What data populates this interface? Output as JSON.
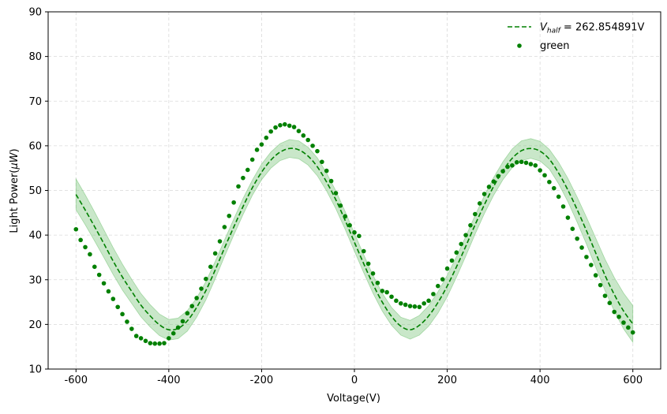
{
  "chart_data": {
    "type": "line",
    "xlabel": "Voltage(V)",
    "ylabel_main": "Light Power(",
    "ylabel_unit": "μW",
    "ylabel_close": ")",
    "xlim": [
      -660,
      660
    ],
    "ylim": [
      10,
      90
    ],
    "xticks": [
      -600,
      -400,
      -200,
      0,
      200,
      400,
      600
    ],
    "yticks": [
      10,
      20,
      30,
      40,
      50,
      60,
      70,
      80,
      90
    ],
    "grid": true,
    "legend_position": "top-right",
    "colors": {
      "fit": "#008000",
      "band": "#77c477",
      "points": "#008000",
      "grid": "#d9d9d9"
    },
    "fit_series": {
      "legend_prefix": "V",
      "legend_subscript": "half",
      "legend_value": " = 262.854891V",
      "x": [
        -600,
        -580,
        -560,
        -540,
        -520,
        -500,
        -480,
        -460,
        -440,
        -420,
        -400,
        -380,
        -360,
        -340,
        -320,
        -300,
        -280,
        -260,
        -240,
        -220,
        -200,
        -180,
        -160,
        -140,
        -120,
        -100,
        -80,
        -60,
        -40,
        -20,
        0,
        20,
        40,
        60,
        80,
        100,
        120,
        140,
        160,
        180,
        200,
        220,
        240,
        260,
        280,
        300,
        320,
        340,
        360,
        380,
        400,
        420,
        440,
        460,
        480,
        500,
        520,
        540,
        560,
        580,
        600
      ],
      "y": [
        49.1,
        45.6,
        41.9,
        38.1,
        34.2,
        30.6,
        27.4,
        24.3,
        21.9,
        19.9,
        18.8,
        19.1,
        20.8,
        23.8,
        27.6,
        32.2,
        37.1,
        41.8,
        46.4,
        50.6,
        54.1,
        56.8,
        58.6,
        59.4,
        59.1,
        57.7,
        55.3,
        51.9,
        47.9,
        43.3,
        38.4,
        33.6,
        29.0,
        25.0,
        21.8,
        19.6,
        18.8,
        19.8,
        21.9,
        24.9,
        28.6,
        32.9,
        37.5,
        42.3,
        46.8,
        50.9,
        54.4,
        57.2,
        58.9,
        59.4,
        58.8,
        57.0,
        53.9,
        50.1,
        45.7,
        41.0,
        36.0,
        31.0,
        26.7,
        23.0,
        20.1
      ],
      "band_upper": [
        52.6,
        49.0,
        45.2,
        41.2,
        37.2,
        33.5,
        30.1,
        26.9,
        24.4,
        22.3,
        21.1,
        21.4,
        23.1,
        25.9,
        29.6,
        34.1,
        38.9,
        43.6,
        48.2,
        52.3,
        55.9,
        58.6,
        60.5,
        61.4,
        61.1,
        59.7,
        57.3,
        53.9,
        49.9,
        45.3,
        40.4,
        35.6,
        31.0,
        27.0,
        23.8,
        21.6,
        20.9,
        22.0,
        24.2,
        27.3,
        31.0,
        35.2,
        39.7,
        44.4,
        48.8,
        52.9,
        56.4,
        59.3,
        61.1,
        61.6,
        61.0,
        59.2,
        56.3,
        52.7,
        48.5,
        44.0,
        39.3,
        34.6,
        30.5,
        27.0,
        24.2
      ],
      "band_lower": [
        45.7,
        42.3,
        38.7,
        35.0,
        31.2,
        27.7,
        24.7,
        21.7,
        19.4,
        17.5,
        16.5,
        16.8,
        18.5,
        21.6,
        25.5,
        30.2,
        35.2,
        40.0,
        44.6,
        48.9,
        52.4,
        55.0,
        56.7,
        57.4,
        57.1,
        55.7,
        53.3,
        49.9,
        45.9,
        41.3,
        36.4,
        31.6,
        27.0,
        23.0,
        19.8,
        17.6,
        16.7,
        17.6,
        19.6,
        22.5,
        26.2,
        30.6,
        35.3,
        40.2,
        44.8,
        48.9,
        52.4,
        55.1,
        56.7,
        57.2,
        56.6,
        54.8,
        51.5,
        47.5,
        42.9,
        38.0,
        32.8,
        27.6,
        23.0,
        19.0,
        16.0
      ]
    },
    "points_series": {
      "name": "green",
      "x": [
        -600,
        -590,
        -580,
        -570,
        -560,
        -550,
        -540,
        -530,
        -520,
        -510,
        -500,
        -490,
        -480,
        -470,
        -460,
        -450,
        -440,
        -430,
        -420,
        -410,
        -400,
        -390,
        -380,
        -370,
        -360,
        -350,
        -340,
        -330,
        -320,
        -310,
        -300,
        -290,
        -280,
        -270,
        -260,
        -250,
        -240,
        -230,
        -220,
        -210,
        -200,
        -190,
        -180,
        -170,
        -160,
        -150,
        -140,
        -130,
        -120,
        -110,
        -100,
        -90,
        -80,
        -70,
        -60,
        -50,
        -40,
        -30,
        -20,
        -10,
        0,
        10,
        20,
        30,
        40,
        50,
        60,
        70,
        80,
        90,
        100,
        110,
        120,
        130,
        140,
        150,
        160,
        170,
        180,
        190,
        200,
        210,
        220,
        230,
        240,
        250,
        260,
        270,
        280,
        290,
        300,
        310,
        320,
        330,
        340,
        350,
        360,
        370,
        380,
        390,
        400,
        410,
        420,
        430,
        440,
        450,
        460,
        470,
        480,
        490,
        500,
        510,
        520,
        530,
        540,
        550,
        560,
        570,
        580,
        590,
        600
      ],
      "y": [
        41.3,
        38.9,
        37.3,
        35.7,
        32.9,
        31.1,
        29.2,
        27.4,
        25.7,
        23.9,
        22.3,
        20.6,
        19.0,
        17.4,
        16.9,
        16.3,
        15.8,
        15.7,
        15.7,
        15.8,
        16.9,
        18.0,
        19.3,
        20.7,
        22.5,
        24.1,
        25.9,
        28.0,
        30.2,
        32.9,
        35.9,
        38.6,
        41.8,
        44.3,
        47.3,
        50.9,
        52.8,
        54.6,
        56.9,
        59.1,
        60.3,
        61.8,
        63.2,
        64.1,
        64.6,
        64.8,
        64.5,
        64.2,
        63.3,
        62.3,
        61.3,
        60.0,
        58.8,
        56.4,
        54.4,
        52.1,
        49.4,
        46.6,
        44.2,
        42.2,
        40.6,
        39.8,
        36.4,
        33.6,
        31.4,
        29.3,
        27.5,
        27.2,
        26.2,
        25.3,
        24.7,
        24.4,
        24.1,
        24.0,
        23.9,
        24.7,
        25.3,
        26.8,
        28.6,
        30.1,
        32.5,
        34.3,
        36.1,
        38.0,
        40.0,
        42.2,
        44.7,
        47.1,
        49.2,
        50.8,
        52.0,
        53.2,
        54.3,
        55.3,
        55.6,
        56.3,
        56.4,
        56.2,
        55.9,
        55.6,
        54.5,
        53.4,
        51.9,
        50.5,
        48.6,
        46.4,
        43.9,
        41.4,
        39.2,
        37.2,
        35.1,
        33.3,
        31.0,
        28.8,
        26.4,
        24.8,
        22.8,
        21.7,
        20.4,
        19.3,
        18.2
      ]
    }
  }
}
